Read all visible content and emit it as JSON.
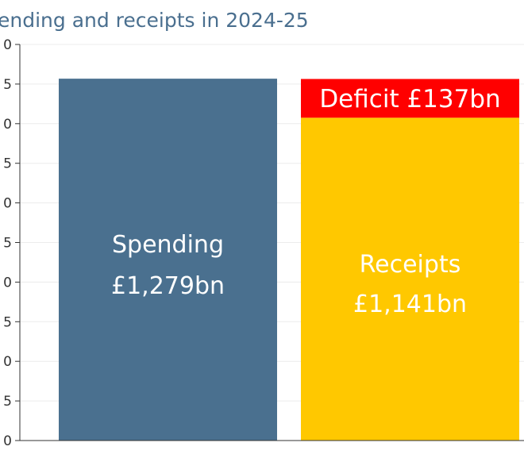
{
  "chart_data": {
    "type": "bar",
    "title": "ending and receipts in 2024-25",
    "y_tick_labels": [
      "0",
      "5",
      "0",
      "5",
      "0",
      "5",
      "0",
      "5",
      "0",
      "5",
      "0"
    ],
    "ylim": [
      0,
      1400
    ],
    "grid": true,
    "bars": [
      {
        "name": "Spending",
        "label_lines": [
          "Spending",
          "£1,279bn"
        ],
        "value": 1279,
        "color": "#4a708f"
      },
      {
        "name": "Receipts",
        "label_lines": [
          "Receipts",
          "£1,141bn"
        ],
        "value": 1141,
        "color": "#ffc800"
      }
    ],
    "deficit": {
      "label": "Deficit £137bn",
      "value": 137,
      "color": "#ff0000"
    }
  }
}
